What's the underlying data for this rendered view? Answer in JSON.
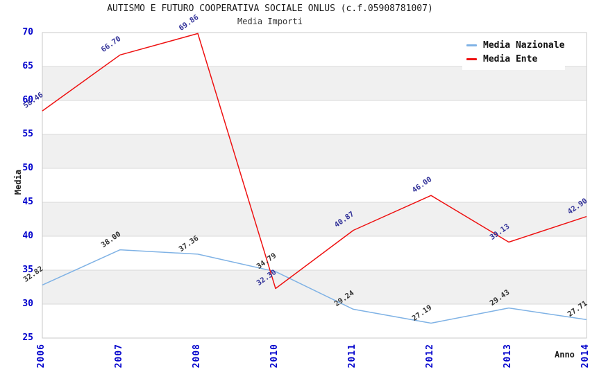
{
  "chart_data": {
    "type": "line",
    "title": "AUTISMO E FUTURO COOPERATIVA SOCIALE ONLUS (c.f.05908781007)",
    "subtitle": "Media Importi",
    "xlabel": "Anno",
    "ylabel": "Media",
    "categories": [
      "2006",
      "2007",
      "2008",
      "2010",
      "2011",
      "2012",
      "2013",
      "2014"
    ],
    "series": [
      {
        "name": "Media Nazionale",
        "color": "#7fb2e5",
        "label_color": "#333333",
        "values": [
          32.82,
          38.0,
          37.36,
          34.79,
          29.24,
          27.19,
          29.43,
          27.71
        ]
      },
      {
        "name": "Media Ente",
        "color": "#ee1111",
        "label_color": "#333399",
        "values": [
          58.46,
          66.7,
          69.86,
          32.3,
          40.87,
          46.0,
          39.13,
          42.9
        ]
      }
    ],
    "ylim": [
      25,
      70
    ],
    "y_ticks": [
      25,
      30,
      35,
      40,
      45,
      50,
      55,
      60,
      65,
      70
    ],
    "grid": true,
    "legend_position": "top-right",
    "colors": {
      "band": "#f0f0f0",
      "grid": "#d9d9d9",
      "border": "#c8c8c8",
      "tick_label": "#0000cc"
    }
  }
}
